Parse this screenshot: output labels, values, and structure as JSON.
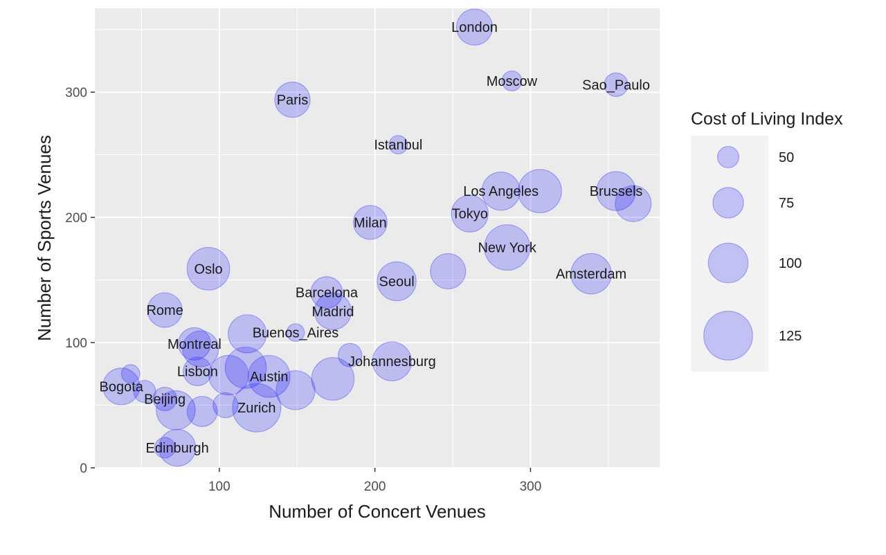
{
  "chart_data": {
    "type": "scatter",
    "xlabel": "Number of Concert Venues",
    "ylabel": "Number of Sports Venues",
    "xlim": [
      20,
      383
    ],
    "ylim": [
      0,
      367
    ],
    "x_ticks": [
      100,
      200,
      300
    ],
    "y_ticks": [
      0,
      100,
      200,
      300
    ],
    "x_minor_ticks": [
      50,
      150,
      250,
      350
    ],
    "y_minor_ticks": [
      50,
      150,
      250,
      350
    ],
    "grid": true,
    "legend": {
      "title": "Cost of Living Index",
      "position": "right",
      "entries": [
        {
          "label": "50",
          "size": 50
        },
        {
          "label": "75",
          "size": 75
        },
        {
          "label": "100",
          "size": 100
        },
        {
          "label": "125",
          "size": 125
        }
      ]
    },
    "colors": {
      "panel": "#ebebeb",
      "grid": "#ffffff",
      "bubble_fill": "#0000ff",
      "bubble_stroke": "#4d4dff",
      "legend_key_bg": "#f2f2f2"
    },
    "points": [
      {
        "label": "London",
        "x": 264,
        "y": 352,
        "size": 90
      },
      {
        "label": "Moscow",
        "x": 288,
        "y": 309,
        "size": 46
      },
      {
        "label": "Sao_Paulo",
        "x": 355,
        "y": 306,
        "size": 56
      },
      {
        "label": "Paris",
        "x": 147,
        "y": 294,
        "size": 88
      },
      {
        "label": "Istanbul",
        "x": 215,
        "y": 258,
        "size": 42
      },
      {
        "label": "Los Angeles",
        "x": 281,
        "y": 221,
        "size": 96
      },
      {
        "label": "",
        "x": 306,
        "y": 221,
        "size": 110
      },
      {
        "label": "Brussels",
        "x": 355,
        "y": 221,
        "size": 98
      },
      {
        "label": "",
        "x": 366,
        "y": 211,
        "size": 90
      },
      {
        "label": "Tokyo",
        "x": 261,
        "y": 203,
        "size": 92
      },
      {
        "label": "Milan",
        "x": 197,
        "y": 196,
        "size": 84
      },
      {
        "label": "New York",
        "x": 285,
        "y": 176,
        "size": 116
      },
      {
        "label": "Oslo",
        "x": 93,
        "y": 159,
        "size": 108
      },
      {
        "label": "",
        "x": 247,
        "y": 157,
        "size": 88
      },
      {
        "label": "Amsterdam",
        "x": 339,
        "y": 155,
        "size": 102
      },
      {
        "label": "Seoul",
        "x": 214,
        "y": 149,
        "size": 98
      },
      {
        "label": "Barcelona",
        "x": 169,
        "y": 140,
        "size": 78
      },
      {
        "label": "Madrid",
        "x": 173,
        "y": 125,
        "size": 92
      },
      {
        "label": "Rome",
        "x": 65,
        "y": 126,
        "size": 86
      },
      {
        "label": "Buenos_Aires",
        "x": 149,
        "y": 108,
        "size": 40
      },
      {
        "label": "",
        "x": 118,
        "y": 107,
        "size": 96
      },
      {
        "label": "Montreal",
        "x": 84,
        "y": 99,
        "size": 80
      },
      {
        "label": "",
        "x": 88,
        "y": 95,
        "size": 90
      },
      {
        "label": "",
        "x": 184,
        "y": 90,
        "size": 56
      },
      {
        "label": "Johannesburg",
        "x": 211,
        "y": 85,
        "size": 98
      },
      {
        "label": "",
        "x": 117,
        "y": 80,
        "size": 104
      },
      {
        "label": "Lisbon",
        "x": 86,
        "y": 77,
        "size": 70
      },
      {
        "label": "",
        "x": 106,
        "y": 74,
        "size": 100
      },
      {
        "label": "Austin",
        "x": 132,
        "y": 73,
        "size": 106
      },
      {
        "label": "",
        "x": 173,
        "y": 71,
        "size": 108
      },
      {
        "label": "Bogota",
        "x": 37,
        "y": 65,
        "size": 92
      },
      {
        "label": "",
        "x": 43,
        "y": 75,
        "size": 42
      },
      {
        "label": "",
        "x": 149,
        "y": 62,
        "size": 98
      },
      {
        "label": "",
        "x": 52,
        "y": 61,
        "size": 52
      },
      {
        "label": "Beijing",
        "x": 65,
        "y": 55,
        "size": 56
      },
      {
        "label": "",
        "x": 104,
        "y": 50,
        "size": 60
      },
      {
        "label": "",
        "x": 72,
        "y": 46,
        "size": 98
      },
      {
        "label": "",
        "x": 89,
        "y": 45,
        "size": 74
      },
      {
        "label": "Zurich",
        "x": 124,
        "y": 48,
        "size": 124
      },
      {
        "label": "Edinburgh",
        "x": 73,
        "y": 16,
        "size": 92
      },
      {
        "label": "",
        "x": 65,
        "y": 16,
        "size": 48
      }
    ]
  }
}
